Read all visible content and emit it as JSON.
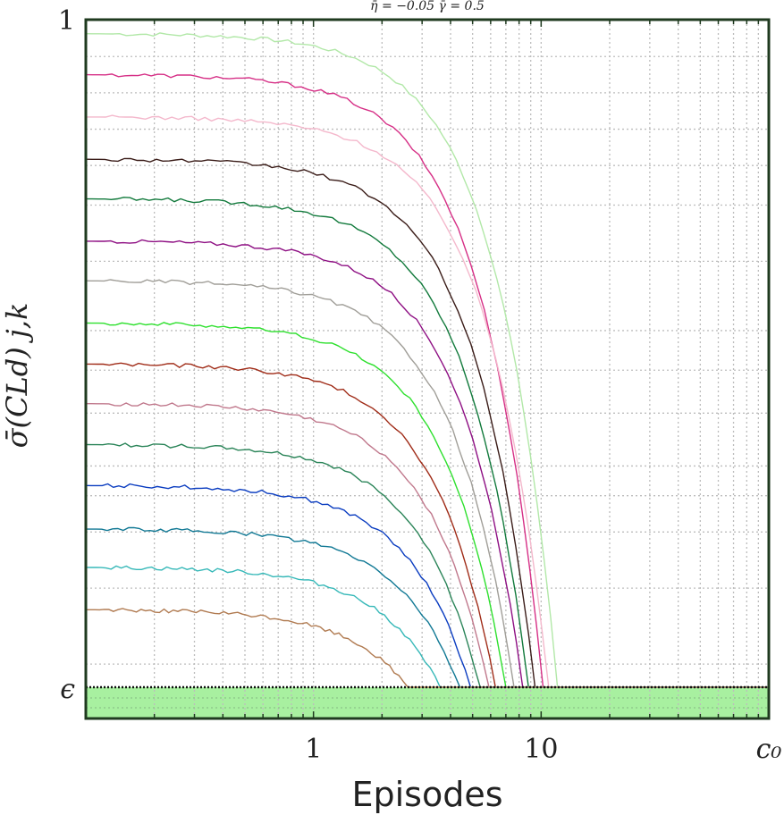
{
  "chart_data": {
    "type": "line",
    "title": "η̄ = −0.05  γ̄ = 0.5",
    "xlabel": "Episodes",
    "ylabel": "σ̄(CLd) j,k",
    "xscale": "log",
    "xlim": [
      0.1,
      100
    ],
    "ylim": [
      0,
      1
    ],
    "grid": true,
    "legend": "none",
    "x_ticks": [
      {
        "value": 1,
        "label": "1"
      },
      {
        "value": 10,
        "label": "10"
      },
      {
        "value": 100,
        "label": "c₀"
      }
    ],
    "y_ticks": [
      {
        "value": 1,
        "label": "1"
      },
      {
        "value": 0,
        "label": "ϵ"
      }
    ],
    "epsilon_band_color": "#a8f0a0",
    "series": [
      {
        "color": "#b2e8a8",
        "y0": 0.99,
        "xc": 11.8
      },
      {
        "color": "#d62f86",
        "y0": 0.928,
        "xc": 10.2
      },
      {
        "color": "#f4b8cc",
        "y0": 0.864,
        "xc": 10.8
      },
      {
        "color": "#3a1c18",
        "y0": 0.8,
        "xc": 9.4
      },
      {
        "color": "#127a3c",
        "y0": 0.74,
        "xc": 8.8
      },
      {
        "color": "#8e0f83",
        "y0": 0.676,
        "xc": 8.3
      },
      {
        "color": "#a09e98",
        "y0": 0.616,
        "xc": 7.6
      },
      {
        "color": "#2ee02e",
        "y0": 0.552,
        "xc": 7.0
      },
      {
        "color": "#a02c18",
        "y0": 0.49,
        "xc": 6.3
      },
      {
        "color": "#c0788c",
        "y0": 0.43,
        "xc": 5.9
      },
      {
        "color": "#2a8458",
        "y0": 0.368,
        "xc": 5.4
      },
      {
        "color": "#0a3cc0",
        "y0": 0.306,
        "xc": 4.9
      },
      {
        "color": "#107894",
        "y0": 0.24,
        "xc": 4.4
      },
      {
        "color": "#36b8b8",
        "y0": 0.182,
        "xc": 3.6
      },
      {
        "color": "#b07a50",
        "y0": 0.118,
        "xc": 2.6
      }
    ]
  }
}
